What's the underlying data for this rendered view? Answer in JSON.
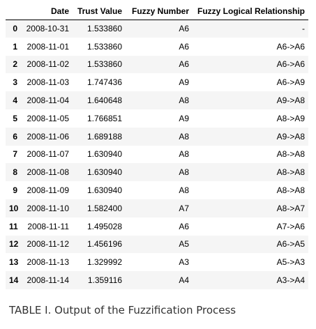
{
  "table": {
    "columns": [
      "",
      "Date",
      "Trust Value",
      "Fuzzy Number",
      "Fuzzy Logical Relationship"
    ],
    "rows": [
      {
        "index": "0",
        "date": "2008-10-31",
        "trust": "1.533860",
        "fuzzy": "A6",
        "flr": "-"
      },
      {
        "index": "1",
        "date": "2008-11-01",
        "trust": "1.533860",
        "fuzzy": "A6",
        "flr": "A6->A6"
      },
      {
        "index": "2",
        "date": "2008-11-02",
        "trust": "1.533860",
        "fuzzy": "A6",
        "flr": "A6->A6"
      },
      {
        "index": "3",
        "date": "2008-11-03",
        "trust": "1.747436",
        "fuzzy": "A9",
        "flr": "A6->A9"
      },
      {
        "index": "4",
        "date": "2008-11-04",
        "trust": "1.640648",
        "fuzzy": "A8",
        "flr": "A9->A8"
      },
      {
        "index": "5",
        "date": "2008-11-05",
        "trust": "1.766851",
        "fuzzy": "A9",
        "flr": "A8->A9"
      },
      {
        "index": "6",
        "date": "2008-11-06",
        "trust": "1.689188",
        "fuzzy": "A8",
        "flr": "A9->A8"
      },
      {
        "index": "7",
        "date": "2008-11-07",
        "trust": "1.630940",
        "fuzzy": "A8",
        "flr": "A8->A8"
      },
      {
        "index": "8",
        "date": "2008-11-08",
        "trust": "1.630940",
        "fuzzy": "A8",
        "flr": "A8->A8"
      },
      {
        "index": "9",
        "date": "2008-11-09",
        "trust": "1.630940",
        "fuzzy": "A8",
        "flr": "A8->A8"
      },
      {
        "index": "10",
        "date": "2008-11-10",
        "trust": "1.582400",
        "fuzzy": "A7",
        "flr": "A8->A7"
      },
      {
        "index": "11",
        "date": "2008-11-11",
        "trust": "1.495028",
        "fuzzy": "A6",
        "flr": "A7->A6"
      },
      {
        "index": "12",
        "date": "2008-11-12",
        "trust": "1.456196",
        "fuzzy": "A5",
        "flr": "A6->A5"
      },
      {
        "index": "13",
        "date": "2008-11-13",
        "trust": "1.329992",
        "fuzzy": "A3",
        "flr": "A5->A3"
      },
      {
        "index": "14",
        "date": "2008-11-14",
        "trust": "1.359116",
        "fuzzy": "A4",
        "flr": "A3->A4"
      }
    ]
  },
  "caption": "TABLE I. Output of the Fuzzification Process",
  "colors": {
    "stripe": "#f5f5f5",
    "caption_text": "#333333"
  }
}
